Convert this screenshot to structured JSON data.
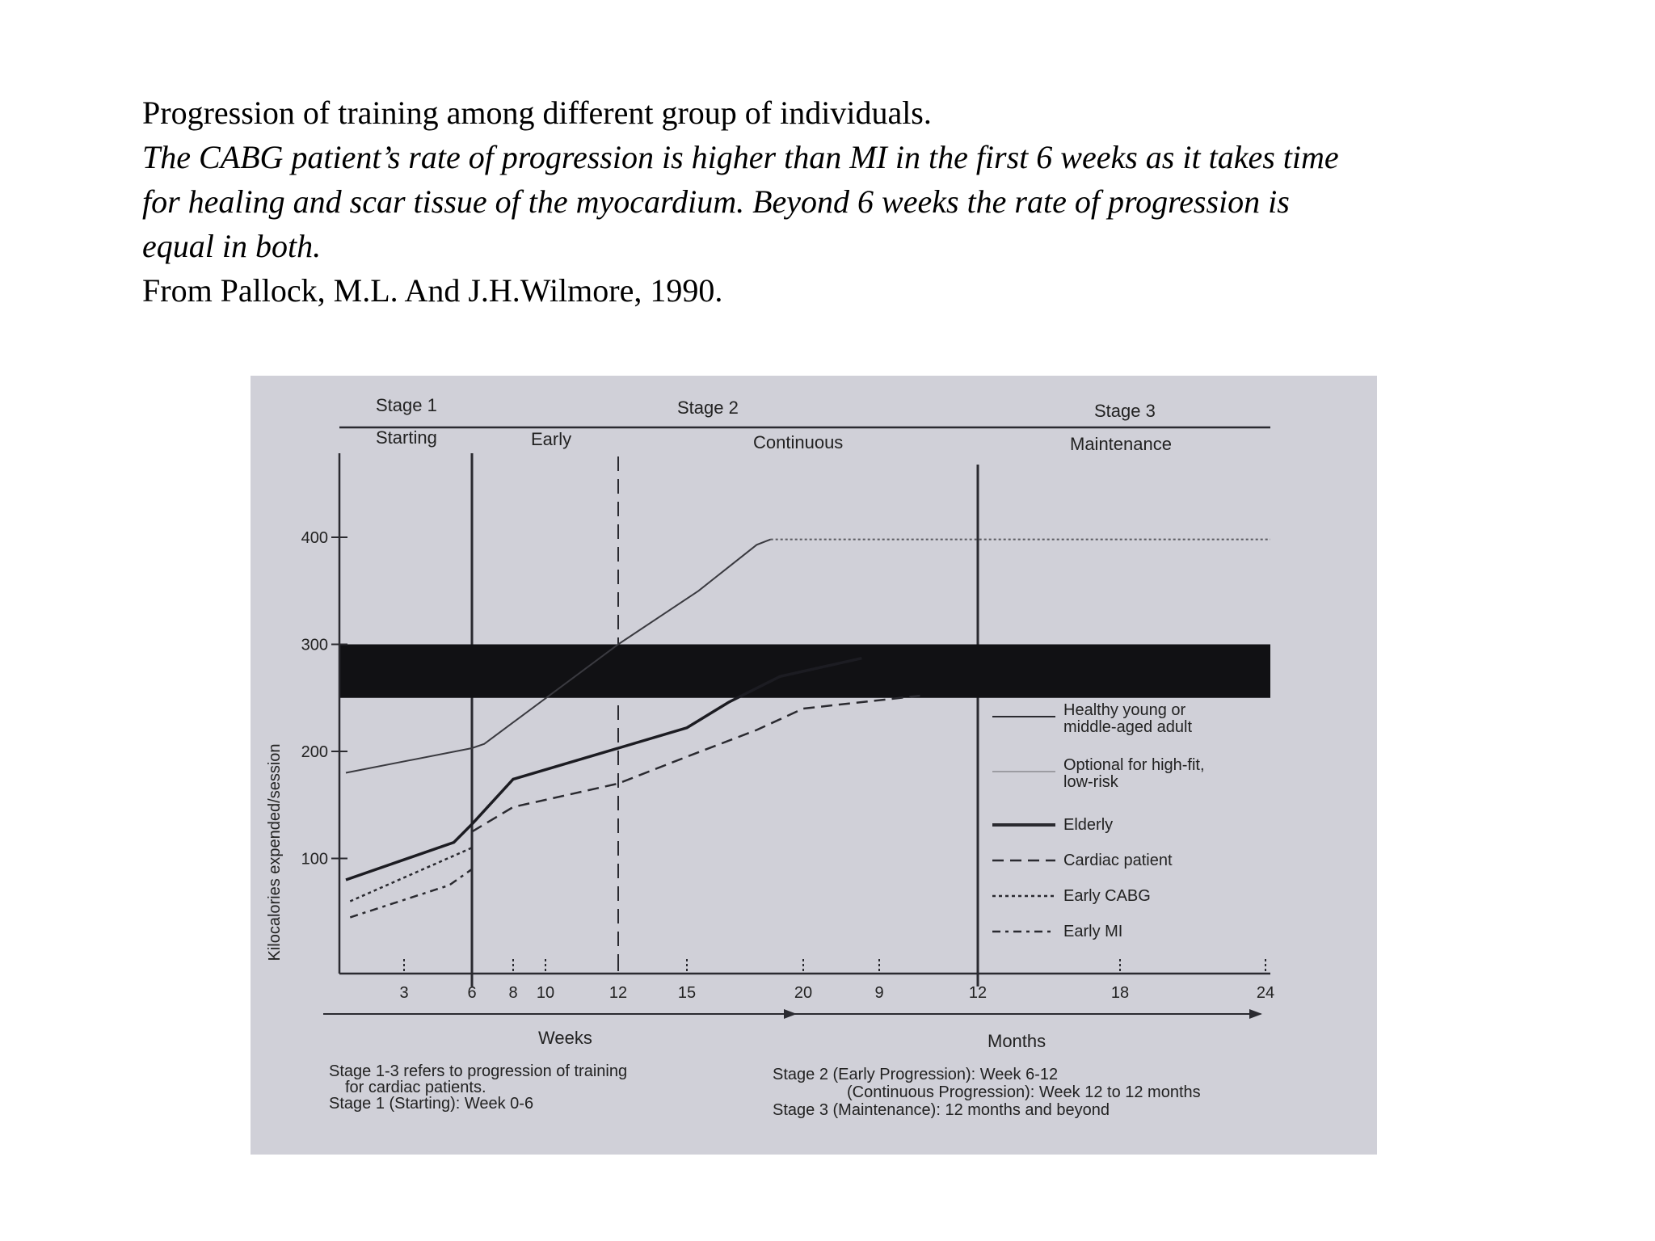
{
  "caption": {
    "line1": "Progression of training among different group of individuals.",
    "line2": "The CABG patient’s rate of progression is higher than MI in the first 6 weeks as it takes time",
    "line3": "for healing and scar tissue of the myocardium. Beyond 6 weeks the rate of progression is",
    "line4": "equal in both.",
    "line5": "From Pallock, M.L. And J.H.Wilmore, 1990."
  },
  "chart_data": {
    "type": "line",
    "title": "",
    "ylabel": "Kilocalories expended/session",
    "ylim": [
      0,
      440
    ],
    "yticks": [
      100,
      200,
      300,
      400
    ],
    "stages": {
      "stage1": "Stage 1",
      "stage2": "Stage 2",
      "stage3": "Stage 3",
      "starting": "Starting",
      "early": "Early",
      "continuous": "Continuous",
      "maintenance": "Maintenance"
    },
    "target_zone": {
      "from": 250,
      "to": 300
    },
    "x_tick_labels": [
      "3",
      "6",
      "8",
      "10",
      "12",
      "15",
      "20",
      "9",
      "12",
      "18",
      "24"
    ],
    "x_axis_labels": {
      "weeks": "Weeks",
      "months": "Months"
    },
    "series": [
      {
        "name": "Healthy young or middle-aged adult",
        "name2": "middle-aged adult",
        "name1": "Healthy young or",
        "style": "thin-solid",
        "points": [
          [
            0.3,
            180
          ],
          [
            6,
            203
          ],
          [
            6.6,
            207
          ],
          [
            12,
            300
          ],
          [
            15.5,
            350
          ],
          [
            18,
            393
          ],
          [
            18.6,
            398
          ]
        ]
      },
      {
        "name1": "Optional for high-fit,",
        "name2": "low-risk",
        "style": "dotted-flat",
        "points": [
          [
            18.6,
            398
          ],
          [
            24,
            398
          ]
        ]
      },
      {
        "name1": "Elderly",
        "style": "thick-solid",
        "points": [
          [
            0.3,
            80
          ],
          [
            5.2,
            115
          ],
          [
            6,
            132
          ],
          [
            8,
            174
          ],
          [
            12,
            203
          ],
          [
            15,
            222
          ],
          [
            16.8,
            246
          ],
          [
            19,
            270
          ],
          [
            20.5,
            287
          ]
        ]
      },
      {
        "name1": "Cardiac patient",
        "style": "dashed",
        "points": [
          [
            6,
            125
          ],
          [
            8,
            148
          ],
          [
            12,
            170
          ],
          [
            15,
            195
          ],
          [
            18,
            220
          ],
          [
            20,
            240
          ],
          [
            21,
            252
          ]
        ]
      },
      {
        "name1": "Early CABG",
        "style": "dotted",
        "points": [
          [
            0.5,
            60
          ],
          [
            6,
            110
          ]
        ]
      },
      {
        "name1": "Early MI",
        "style": "dash-dot",
        "points": [
          [
            0.5,
            45
          ],
          [
            5,
            75
          ],
          [
            6,
            90
          ]
        ]
      }
    ],
    "notes": {
      "left1": "Stage 1-3 refers to progression of training",
      "left2": "for cardiac patients.",
      "left3": "Stage 1 (Starting): Week 0-6",
      "right1": "Stage 2 (Early Progression): Week 6-12",
      "right2": "(Continuous Progression): Week 12 to 12 months",
      "right3": "Stage 3 (Maintenance): 12 months and beyond"
    },
    "colors": {
      "panel": "#d0d0d8",
      "line": "#2a2a30",
      "zone": "#111114",
      "light": "#7a7a80"
    }
  }
}
